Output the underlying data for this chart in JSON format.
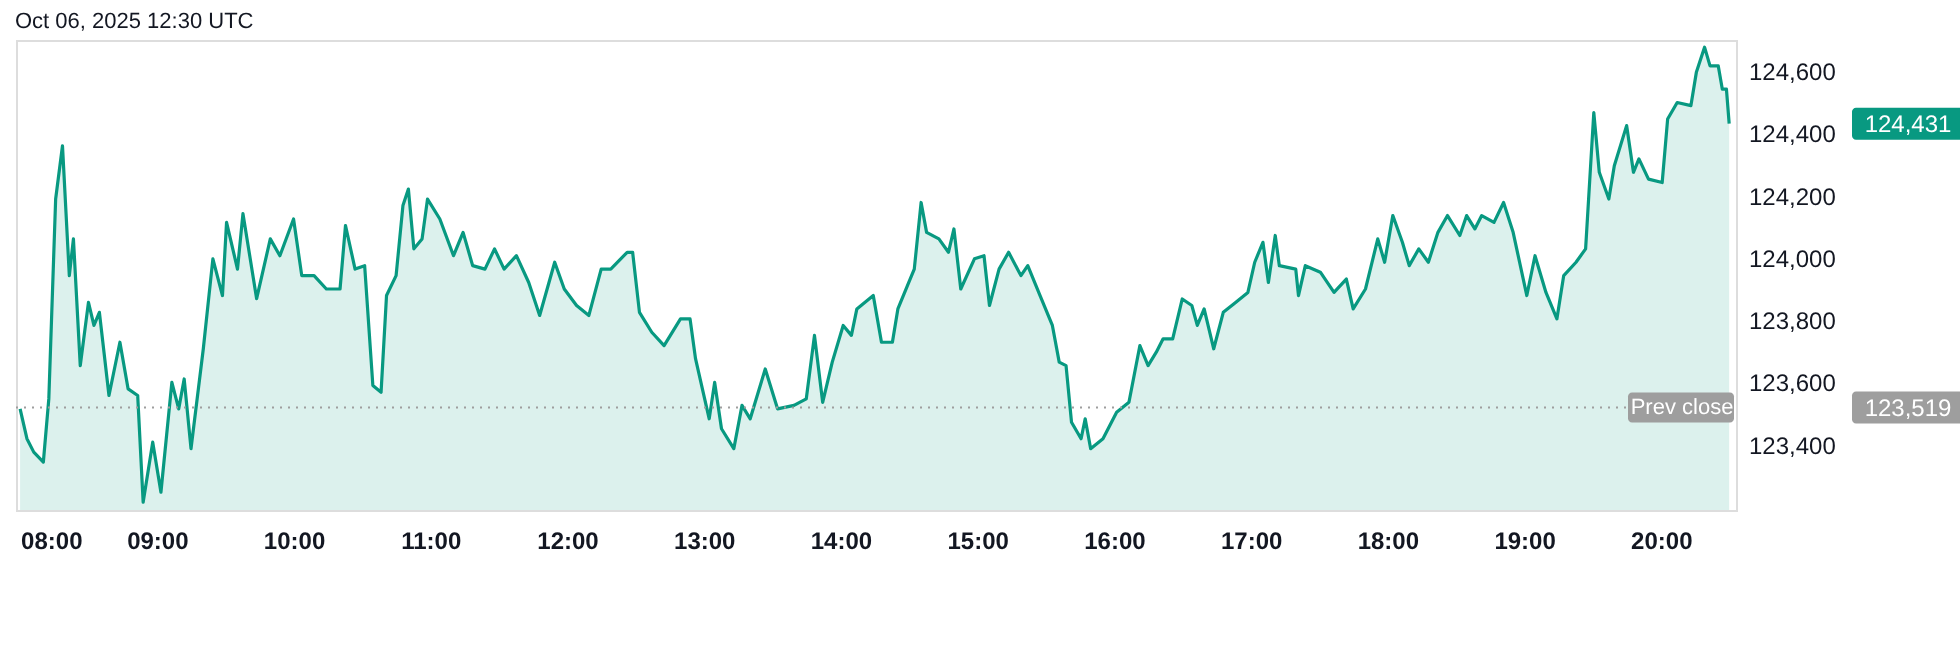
{
  "chart_data": {
    "type": "area",
    "title": "Oct 06, 2025 12:30 UTC",
    "x": [
      8.0,
      8.05,
      8.1,
      8.17,
      8.21,
      8.26,
      8.31,
      8.36,
      8.39,
      8.44,
      8.5,
      8.54,
      8.58,
      8.65,
      8.73,
      8.79,
      8.86,
      8.9,
      8.97,
      9.03,
      9.11,
      9.16,
      9.2,
      9.25,
      9.34,
      9.41,
      9.48,
      9.51,
      9.59,
      9.63,
      9.73,
      9.83,
      9.9,
      10.0,
      10.06,
      10.15,
      10.24,
      10.34,
      10.38,
      10.45,
      10.52,
      10.58,
      10.64,
      10.68,
      10.75,
      10.8,
      10.84,
      10.88,
      10.94,
      10.98,
      11.07,
      11.17,
      11.24,
      11.31,
      11.4,
      11.47,
      11.54,
      11.63,
      11.72,
      11.8,
      11.91,
      11.98,
      12.07,
      12.16,
      12.25,
      12.32,
      12.44,
      12.48,
      12.53,
      12.62,
      12.71,
      12.83,
      12.9,
      12.94,
      13.04,
      13.08,
      13.13,
      13.22,
      13.28,
      13.34,
      13.45,
      13.54,
      13.66,
      13.75,
      13.81,
      13.87,
      13.94,
      14.02,
      14.08,
      14.12,
      14.24,
      14.3,
      14.38,
      14.42,
      14.49,
      14.54,
      14.59,
      14.63,
      14.72,
      14.79,
      14.83,
      14.88,
      14.98,
      15.05,
      15.09,
      15.16,
      15.23,
      15.32,
      15.37,
      15.46,
      15.55,
      15.6,
      15.65,
      15.69,
      15.76,
      15.79,
      15.83,
      15.92,
      16.02,
      16.11,
      16.19,
      16.25,
      16.31,
      16.36,
      16.43,
      16.5,
      16.57,
      16.61,
      16.66,
      16.73,
      16.8,
      16.89,
      16.98,
      17.03,
      17.09,
      17.13,
      17.18,
      17.21,
      17.33,
      17.35,
      17.4,
      17.51,
      17.61,
      17.7,
      17.75,
      17.84,
      17.93,
      17.98,
      18.04,
      18.11,
      18.16,
      18.23,
      18.3,
      18.37,
      18.44,
      18.53,
      18.58,
      18.64,
      18.69,
      18.78,
      18.85,
      18.92,
      19.02,
      19.08,
      19.16,
      19.24,
      19.29,
      19.38,
      19.45,
      19.51,
      19.55,
      19.62,
      19.66,
      19.75,
      19.8,
      19.84,
      19.91,
      20.01,
      20.05,
      20.12,
      20.22,
      20.26,
      20.32,
      20.36,
      20.42,
      20.45,
      20.48,
      20.5
    ],
    "series": [
      {
        "color": "#089981",
        "values": [
          123515,
          123419,
          123376,
          123344,
          123547,
          124189,
          124360,
          123943,
          124061,
          123654,
          123857,
          123783,
          123825,
          123558,
          123729,
          123579,
          123558,
          123215,
          123408,
          123247,
          123600,
          123515,
          123611,
          123387,
          123708,
          123997,
          123879,
          124114,
          123964,
          124142,
          123869,
          124061,
          124007,
          124125,
          123943,
          123943,
          123900,
          123900,
          124104,
          123964,
          123975,
          123590,
          123568,
          123879,
          123943,
          124168,
          124221,
          124029,
          124061,
          124189,
          124125,
          124007,
          124082,
          123975,
          123964,
          124029,
          123964,
          124007,
          123921,
          123815,
          123986,
          123900,
          123847,
          123815,
          123964,
          123964,
          124018,
          124018,
          123825,
          123761,
          123718,
          123804,
          123804,
          123676,
          123483,
          123600,
          123451,
          123387,
          123526,
          123483,
          123643,
          123515,
          123526,
          123547,
          123751,
          123536,
          123665,
          123783,
          123751,
          123836,
          123879,
          123729,
          123729,
          123836,
          123911,
          123964,
          124178,
          124082,
          124061,
          124018,
          124093,
          123900,
          123997,
          124007,
          123847,
          123964,
          124018,
          123943,
          123975,
          123879,
          123783,
          123665,
          123654,
          123472,
          123419,
          123483,
          123387,
          123419,
          123504,
          123536,
          123718,
          123654,
          123697,
          123740,
          123740,
          123868,
          123847,
          123783,
          123836,
          123708,
          123825,
          123857,
          123889,
          123986,
          124050,
          123921,
          124072,
          123975,
          123964,
          123879,
          123975,
          123954,
          123889,
          123932,
          123836,
          123900,
          124061,
          123986,
          124136,
          124050,
          123975,
          124029,
          123986,
          124082,
          124136,
          124072,
          124136,
          124093,
          124136,
          124114,
          124178,
          124082,
          123879,
          124007,
          123889,
          123804,
          123943,
          123986,
          124029,
          124467,
          124275,
          124189,
          124296,
          124425,
          124275,
          124318,
          124253,
          124242,
          124446,
          124499,
          124489,
          124596,
          124677,
          124617,
          124617,
          124542,
          124542,
          124431
        ]
      }
    ],
    "xlim": [
      7.97,
      20.55
    ],
    "xticks": [
      {
        "value": 8,
        "label": "08:00"
      },
      {
        "value": 9,
        "label": "09:00"
      },
      {
        "value": 10,
        "label": "10:00"
      },
      {
        "value": 11,
        "label": "11:00"
      },
      {
        "value": 12,
        "label": "12:00"
      },
      {
        "value": 13,
        "label": "13:00"
      },
      {
        "value": 14,
        "label": "14:00"
      },
      {
        "value": 15,
        "label": "15:00"
      },
      {
        "value": 16,
        "label": "16:00"
      },
      {
        "value": 17,
        "label": "17:00"
      },
      {
        "value": 18,
        "label": "18:00"
      },
      {
        "value": 19,
        "label": "19:00"
      },
      {
        "value": 20,
        "label": "20:00"
      }
    ],
    "ylim": [
      123190,
      124700
    ],
    "yticks": [
      {
        "value": 123400,
        "label": "123,400"
      },
      {
        "value": 123600,
        "label": "123,600"
      },
      {
        "value": 123800,
        "label": "123,800"
      },
      {
        "value": 124000,
        "label": "124,000"
      },
      {
        "value": 124200,
        "label": "124,200"
      },
      {
        "value": 124400,
        "label": "124,400"
      },
      {
        "value": 124600,
        "label": "124,600"
      }
    ],
    "ref_lines": [
      {
        "axis": "y",
        "value": 123519,
        "label": "Prev close",
        "color": "#9e9e9e",
        "line_style": "dotted"
      }
    ],
    "annotations": [
      "124,431",
      "123,519"
    ]
  }
}
